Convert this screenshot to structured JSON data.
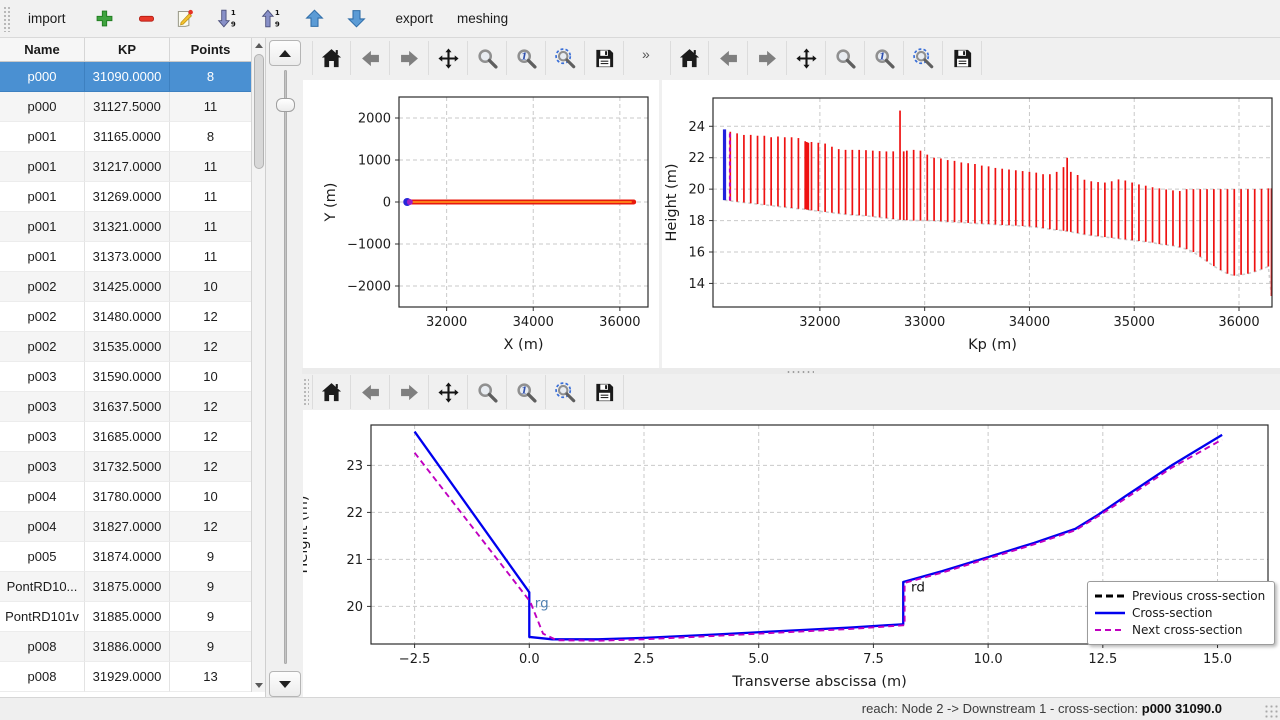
{
  "toolbar_top": {
    "import_label": "import",
    "export_label": "export",
    "meshing_label": "meshing",
    "icons": [
      "add",
      "remove",
      "edit",
      "sort-descending",
      "sort-ascending",
      "move-up",
      "move-down"
    ]
  },
  "table": {
    "columns": [
      "Name",
      "KP",
      "Points"
    ],
    "selected_index": 0,
    "rows": [
      [
        "p000",
        "31090.0000",
        "8"
      ],
      [
        "p000",
        "31127.5000",
        "11"
      ],
      [
        "p001",
        "31165.0000",
        "8"
      ],
      [
        "p001",
        "31217.0000",
        "11"
      ],
      [
        "p001",
        "31269.0000",
        "11"
      ],
      [
        "p001",
        "31321.0000",
        "11"
      ],
      [
        "p001",
        "31373.0000",
        "11"
      ],
      [
        "p002",
        "31425.0000",
        "10"
      ],
      [
        "p002",
        "31480.0000",
        "12"
      ],
      [
        "p002",
        "31535.0000",
        "12"
      ],
      [
        "p003",
        "31590.0000",
        "10"
      ],
      [
        "p003",
        "31637.5000",
        "12"
      ],
      [
        "p003",
        "31685.0000",
        "12"
      ],
      [
        "p003",
        "31732.5000",
        "12"
      ],
      [
        "p004",
        "31780.0000",
        "10"
      ],
      [
        "p004",
        "31827.0000",
        "12"
      ],
      [
        "p005",
        "31874.0000",
        "9"
      ],
      [
        "PontRD10...",
        "31875.0000",
        "9"
      ],
      [
        "PontRD101v",
        "31885.0000",
        "9"
      ],
      [
        "p008",
        "31886.0000",
        "9"
      ],
      [
        "p008",
        "31929.0000",
        "13"
      ]
    ]
  },
  "nav_toolbar": {
    "icons": [
      "home",
      "back",
      "forward",
      "pan",
      "zoom",
      "zoom-one",
      "zoom-rect",
      "save"
    ],
    "overflow": "»"
  },
  "legend": {
    "entries": [
      {
        "label": "Previous cross-section",
        "color": "#000000",
        "dash": "7 4",
        "width": 3
      },
      {
        "label": "Cross-section",
        "color": "#0000ee",
        "dash": "",
        "width": 2.5
      },
      {
        "label": "Next cross-section",
        "color": "#c000c0",
        "dash": "6 4",
        "width": 2
      }
    ]
  },
  "status_bar": {
    "prefix": "reach: Node 2 -> Downstream 1 - cross-section: ",
    "selected": "p000 31090.0"
  },
  "chart_data": [
    {
      "id": "plot-xy",
      "type": "scatter",
      "xlabel": "X (m)",
      "ylabel": "Y (m)",
      "xlim": [
        30900,
        36650
      ],
      "ylim": [
        -2500,
        2500
      ],
      "xticks": [
        32000,
        34000,
        36000
      ],
      "xtick_labels": [
        "32000",
        "34000",
        "36000"
      ],
      "yticks": [
        -2000,
        -1000,
        0,
        1000,
        2000
      ],
      "ytick_labels": [
        "−2000",
        "−1000",
        "0",
        "1000",
        "2000"
      ],
      "band": {
        "x1": 31140,
        "x2": 36320,
        "y": 0,
        "outer_color": "#e8190c",
        "inner_color": "#ff8c1a"
      },
      "markers": [
        {
          "x": 31090,
          "y": 0,
          "r": 4,
          "color": "#2626d8"
        },
        {
          "x": 31150,
          "y": 0,
          "r": 3,
          "color": "#9a1fc8"
        }
      ]
    },
    {
      "id": "plot-profile",
      "type": "bar-range",
      "xlabel": "Kp (m)",
      "ylabel": "Height (m)",
      "xlim": [
        30980,
        36315
      ],
      "ylim": [
        12.5,
        25.8
      ],
      "xticks": [
        32000,
        33000,
        34000,
        35000,
        36000
      ],
      "xtick_labels": [
        "32000",
        "33000",
        "34000",
        "35000",
        "36000"
      ],
      "yticks": [
        14,
        16,
        18,
        20,
        22,
        24
      ],
      "ytick_labels": [
        "14",
        "16",
        "18",
        "20",
        "22",
        "24"
      ],
      "bar_color": "#ee1111",
      "baseline_color": "#cfcfcf",
      "selected_bar": [
        31090,
        19.3,
        23.8
      ],
      "selected_color": "#2222dd",
      "next_bar": [
        31127,
        19.28,
        23.62
      ],
      "next_color": "#c000c0",
      "bars": [
        [
          31145,
          19.25,
          23.65
        ],
        [
          31210,
          19.2,
          23.55
        ],
        [
          31275,
          19.15,
          23.45
        ],
        [
          31340,
          19.1,
          23.45
        ],
        [
          31405,
          19.05,
          23.4
        ],
        [
          31470,
          19.0,
          23.4
        ],
        [
          31535,
          18.95,
          23.3
        ],
        [
          31600,
          18.9,
          23.35
        ],
        [
          31665,
          18.85,
          23.3
        ],
        [
          31730,
          18.8,
          23.3
        ],
        [
          31795,
          18.75,
          23.25
        ],
        [
          31860,
          18.72,
          23.05
        ],
        [
          31875,
          18.7,
          23.0
        ],
        [
          31890,
          18.68,
          22.95
        ],
        [
          31920,
          18.65,
          23.0
        ],
        [
          31985,
          18.6,
          22.95
        ],
        [
          32050,
          18.55,
          22.9
        ],
        [
          32115,
          18.5,
          22.7
        ],
        [
          32180,
          18.45,
          22.55
        ],
        [
          32245,
          18.4,
          22.5
        ],
        [
          32310,
          18.35,
          22.5
        ],
        [
          32375,
          18.33,
          22.5
        ],
        [
          32440,
          18.3,
          22.48
        ],
        [
          32505,
          18.25,
          22.45
        ],
        [
          32570,
          18.2,
          22.42
        ],
        [
          32635,
          18.15,
          22.4
        ],
        [
          32700,
          18.1,
          22.4
        ],
        [
          32765,
          18.05,
          25.0
        ],
        [
          32800,
          18.04,
          22.4
        ],
        [
          32830,
          18.02,
          22.45
        ],
        [
          32895,
          18.0,
          22.5
        ],
        [
          32960,
          18.0,
          22.45
        ],
        [
          33025,
          18.0,
          22.2
        ],
        [
          33090,
          17.98,
          22.0
        ],
        [
          33155,
          17.95,
          21.95
        ],
        [
          33220,
          17.92,
          21.85
        ],
        [
          33285,
          17.9,
          21.8
        ],
        [
          33350,
          17.88,
          21.7
        ],
        [
          33415,
          17.85,
          21.65
        ],
        [
          33480,
          17.82,
          21.6
        ],
        [
          33545,
          17.8,
          21.5
        ],
        [
          33610,
          17.78,
          21.45
        ],
        [
          33675,
          17.75,
          21.35
        ],
        [
          33740,
          17.72,
          21.3
        ],
        [
          33805,
          17.7,
          21.25
        ],
        [
          33870,
          17.68,
          21.2
        ],
        [
          33935,
          17.65,
          21.15
        ],
        [
          34000,
          17.62,
          21.1
        ],
        [
          34065,
          17.58,
          21.05
        ],
        [
          34130,
          17.52,
          20.95
        ],
        [
          34195,
          17.45,
          20.95
        ],
        [
          34260,
          17.4,
          21.1
        ],
        [
          34325,
          17.35,
          21.4
        ],
        [
          34360,
          17.32,
          22.0
        ],
        [
          34395,
          17.28,
          21.1
        ],
        [
          34460,
          17.2,
          20.9
        ],
        [
          34525,
          17.12,
          20.6
        ],
        [
          34590,
          17.05,
          20.5
        ],
        [
          34655,
          17.0,
          20.45
        ],
        [
          34720,
          16.95,
          20.42
        ],
        [
          34785,
          16.9,
          20.5
        ],
        [
          34850,
          16.85,
          20.62
        ],
        [
          34915,
          16.8,
          20.55
        ],
        [
          34980,
          16.75,
          20.42
        ],
        [
          35045,
          16.7,
          20.3
        ],
        [
          35110,
          16.65,
          20.22
        ],
        [
          35175,
          16.6,
          20.12
        ],
        [
          35240,
          16.5,
          20.05
        ],
        [
          35305,
          16.45,
          19.98
        ],
        [
          35370,
          16.4,
          19.92
        ],
        [
          35435,
          16.3,
          19.88
        ],
        [
          35500,
          16.18,
          20.0
        ],
        [
          35565,
          16.0,
          20.0
        ],
        [
          35630,
          15.7,
          20.0
        ],
        [
          35695,
          15.4,
          20.0
        ],
        [
          35760,
          15.1,
          20.0
        ],
        [
          35825,
          14.85,
          20.0
        ],
        [
          35890,
          14.62,
          20.0
        ],
        [
          35955,
          14.5,
          20.0
        ],
        [
          36020,
          14.55,
          20.0
        ],
        [
          36085,
          14.62,
          20.0
        ],
        [
          36150,
          14.75,
          20.0
        ],
        [
          36215,
          14.9,
          20.02
        ],
        [
          36280,
          15.08,
          20.05
        ],
        [
          36310,
          13.2,
          20.05
        ]
      ]
    },
    {
      "id": "plot-cross-section",
      "type": "line",
      "xlabel": "Transverse abscissa (m)",
      "ylabel": "Height (m)",
      "xlim": [
        -3.45,
        16.1
      ],
      "ylim": [
        19.2,
        23.86
      ],
      "xticks": [
        -2.5,
        0,
        2.5,
        5,
        7.5,
        10,
        12.5,
        15
      ],
      "xtick_labels": [
        "−2.5",
        "0.0",
        "2.5",
        "5.0",
        "7.5",
        "10.0",
        "12.5",
        "15.0"
      ],
      "yticks": [
        20,
        21,
        22,
        23
      ],
      "ytick_labels": [
        "20",
        "21",
        "22",
        "23"
      ],
      "series": [
        {
          "name": "Previous cross-section",
          "color": "#000000",
          "dash": "7 4",
          "width": 2.5,
          "points": []
        },
        {
          "name": "Cross-section",
          "color": "#0000ee",
          "dash": "",
          "width": 2.3,
          "points": [
            [
              -2.5,
              23.72
            ],
            [
              0,
              20.3
            ],
            [
              0,
              19.35
            ],
            [
              0.5,
              19.3
            ],
            [
              1.5,
              19.3
            ],
            [
              2.5,
              19.33
            ],
            [
              4,
              19.4
            ],
            [
              5,
              19.45
            ],
            [
              6,
              19.5
            ],
            [
              7,
              19.55
            ],
            [
              8.15,
              19.62
            ],
            [
              8.15,
              20.52
            ],
            [
              9,
              20.75
            ],
            [
              10,
              21.05
            ],
            [
              11,
              21.35
            ],
            [
              11.9,
              21.65
            ],
            [
              12.4,
              21.95
            ],
            [
              13,
              22.35
            ],
            [
              14,
              23.0
            ],
            [
              15.1,
              23.65
            ]
          ]
        },
        {
          "name": "Next cross-section",
          "color": "#c000c0",
          "dash": "6 4",
          "width": 1.9,
          "points": [
            [
              -2.5,
              23.27
            ],
            [
              0.02,
              20.1
            ],
            [
              0.3,
              19.42
            ],
            [
              0.6,
              19.28
            ],
            [
              1.5,
              19.27
            ],
            [
              2.5,
              19.3
            ],
            [
              4,
              19.37
            ],
            [
              5,
              19.42
            ],
            [
              6,
              19.47
            ],
            [
              7,
              19.52
            ],
            [
              8.18,
              19.6
            ],
            [
              8.18,
              20.5
            ],
            [
              9,
              20.72
            ],
            [
              10,
              21.02
            ],
            [
              11,
              21.32
            ],
            [
              11.9,
              21.62
            ],
            [
              12.4,
              21.92
            ],
            [
              13,
              22.3
            ],
            [
              14,
              22.95
            ],
            [
              15.1,
              23.55
            ]
          ]
        }
      ],
      "annotations": [
        {
          "text": "rg",
          "x": 0.12,
          "y": 19.98,
          "color": "#4e7fb0"
        },
        {
          "text": "rd",
          "x": 8.32,
          "y": 20.32,
          "color": "#111111"
        }
      ]
    }
  ]
}
